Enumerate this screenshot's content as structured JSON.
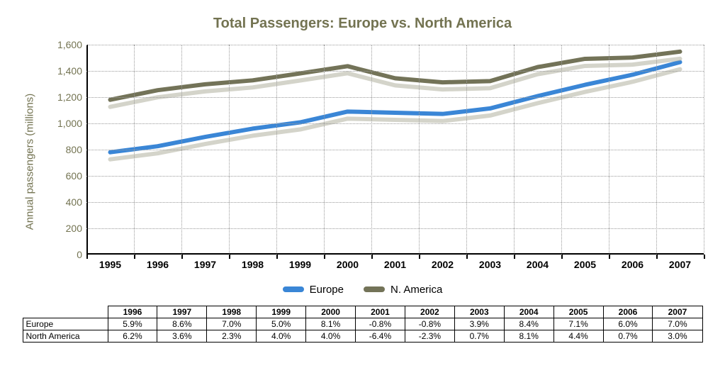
{
  "chart": {
    "type": "line",
    "title": "Total Passengers:  Europe vs. North America",
    "title_fontsize": 20,
    "title_color": "#737351",
    "ylabel": "Annual passengers (millions)",
    "ylabel_fontsize": 15,
    "ylabel_color": "#737351",
    "background_color": "#ffffff",
    "grid_color": "#9a9a9a",
    "axis_color": "#000000",
    "ylim": [
      0,
      1600
    ],
    "ytick_step": 200,
    "yticks": [
      0,
      200,
      400,
      600,
      800,
      1000,
      1200,
      1400,
      1600
    ],
    "ytick_labels": [
      "0",
      "200",
      "400",
      "600",
      "800",
      "1,000",
      "1,200",
      "1,400",
      "1,600"
    ],
    "years": [
      1995,
      1996,
      1997,
      1998,
      1999,
      2000,
      2001,
      2002,
      2003,
      2004,
      2005,
      2006,
      2007
    ],
    "x_label_fontsize": 14,
    "line_width": 6,
    "line_shadow_color": "#b8b8a6",
    "line_shadow_dx": 0,
    "line_shadow_dy": 10,
    "series": [
      {
        "name": "Europe",
        "color": "#3a86d6",
        "values": [
          780,
          826,
          897,
          960,
          1008,
          1090,
          1081,
          1072,
          1114,
          1208,
          1294,
          1371,
          1467
        ]
      },
      {
        "name": "N. America",
        "color": "#737358",
        "values": [
          1180,
          1253,
          1298,
          1328,
          1381,
          1436,
          1344,
          1313,
          1322,
          1429,
          1492,
          1502,
          1547
        ]
      }
    ],
    "legend": {
      "items": [
        {
          "label": "Europe",
          "color": "#3a86d6"
        },
        {
          "label": "N. America",
          "color": "#737358"
        }
      ],
      "fontsize": 15
    }
  },
  "table": {
    "years": [
      "1996",
      "1997",
      "1998",
      "1999",
      "2000",
      "2001",
      "2002",
      "2003",
      "2004",
      "2005",
      "2006",
      "2007"
    ],
    "rows": [
      {
        "label": "Europe",
        "cells": [
          "5.9%",
          "8.6%",
          "7.0%",
          "5.0%",
          "8.1%",
          "-0.8%",
          "-0.8%",
          "3.9%",
          "8.4%",
          "7.1%",
          "6.0%",
          "7.0%"
        ]
      },
      {
        "label": "North America",
        "cells": [
          "6.2%",
          "3.6%",
          "2.3%",
          "4.0%",
          "4.0%",
          "-6.4%",
          "-2.3%",
          "0.7%",
          "8.1%",
          "4.4%",
          "0.7%",
          "3.0%"
        ]
      }
    ],
    "fontsize": 12,
    "border_color": "#000000"
  }
}
